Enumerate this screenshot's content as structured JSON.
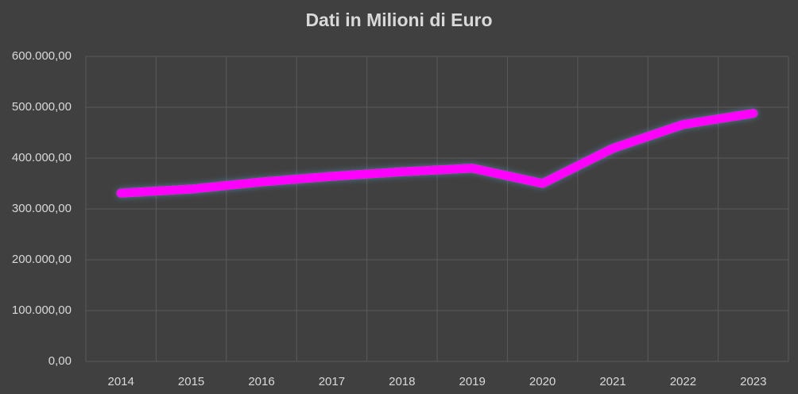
{
  "chart_data": {
    "type": "line",
    "title": "Dati in Milioni di Euro",
    "categories": [
      "2014",
      "2015",
      "2016",
      "2017",
      "2018",
      "2019",
      "2020",
      "2021",
      "2022",
      "2023"
    ],
    "values": [
      331000,
      339000,
      353000,
      364000,
      373000,
      380000,
      350000,
      419000,
      466000,
      488000
    ],
    "color": "#ff00ff",
    "ylim": [
      0,
      600000
    ],
    "yticks": [
      {
        "value": 0,
        "label": "0,00"
      },
      {
        "value": 100000,
        "label": "100.000,00"
      },
      {
        "value": 200000,
        "label": "200.000,00"
      },
      {
        "value": 300000,
        "label": "300.000,00"
      },
      {
        "value": 400000,
        "label": "400.000,00"
      },
      {
        "value": 500000,
        "label": "500.000,00"
      },
      {
        "value": 600000,
        "label": "600.000,00"
      }
    ],
    "grid": true
  }
}
